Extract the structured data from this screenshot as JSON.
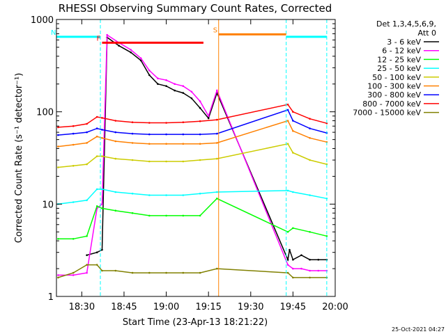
{
  "chart_data": {
    "type": "line",
    "title": "RHESSI Observing Summary Count Rates, Corrected",
    "xlabel": "Start Time (23-Apr-13 18:21:22)",
    "ylabel": "Corrected Count Rate (s⁻¹ detector⁻¹)",
    "footer": "25-Oct-2021 04:27",
    "xlim": [
      18.35,
      20.0
    ],
    "ylim": [
      1,
      1000
    ],
    "yscale": "log",
    "x_ticks": [
      18.5,
      18.75,
      19.0,
      19.25,
      19.5,
      19.75,
      20.0
    ],
    "x_tick_labels": [
      "18:30",
      "18:45",
      "19:00",
      "19:15",
      "19:30",
      "19:45",
      "20:00"
    ],
    "y_ticks": [
      1,
      10,
      100,
      1000
    ],
    "y_tick_labels": [
      "1",
      "10",
      "100",
      "1000"
    ],
    "legend_placement": "right",
    "legend_header": [
      "Det 1,3,4,5,6,9,",
      "Att 0"
    ],
    "series": [
      {
        "name": "3 - 6 keV",
        "color": "#000000",
        "x": [
          18.53,
          18.59,
          18.62,
          18.65,
          18.72,
          18.79,
          18.85,
          18.9,
          18.95,
          19.0,
          19.05,
          19.1,
          19.15,
          19.2,
          19.25,
          19.3,
          19.72,
          19.73,
          19.75,
          19.8,
          19.85,
          19.9,
          19.95
        ],
        "y": [
          2.8,
          3.0,
          3.2,
          640,
          520,
          440,
          360,
          250,
          200,
          190,
          170,
          160,
          140,
          110,
          85,
          160,
          2.5,
          3.2,
          2.5,
          2.8,
          2.5,
          2.5,
          2.5
        ]
      },
      {
        "name": "6 - 12 keV",
        "color": "#ff00ff",
        "x": [
          18.36,
          18.45,
          18.53,
          18.59,
          18.62,
          18.65,
          18.72,
          18.79,
          18.85,
          18.9,
          18.95,
          19.0,
          19.05,
          19.1,
          19.15,
          19.2,
          19.25,
          19.3,
          19.72,
          19.75,
          19.8,
          19.85,
          19.9,
          19.95
        ],
        "y": [
          1.7,
          1.7,
          1.8,
          9.0,
          10.0,
          680,
          560,
          470,
          380,
          280,
          230,
          220,
          200,
          190,
          165,
          130,
          90,
          170,
          2.2,
          2.0,
          2.0,
          1.9,
          1.9,
          1.9
        ]
      },
      {
        "name": "12 - 25 keV",
        "color": "#00ff00",
        "x": [
          18.36,
          18.45,
          18.53,
          18.59,
          18.62,
          18.7,
          18.8,
          18.9,
          19.0,
          19.1,
          19.2,
          19.3,
          19.72,
          19.75,
          19.85,
          19.95
        ],
        "y": [
          4.2,
          4.2,
          4.5,
          9.5,
          9.0,
          8.5,
          8.0,
          7.5,
          7.5,
          7.5,
          7.5,
          11.5,
          5.0,
          5.5,
          5.0,
          4.5
        ]
      },
      {
        "name": "25 - 50 keV",
        "color": "#00ffff",
        "x": [
          18.36,
          18.45,
          18.53,
          18.59,
          18.62,
          18.7,
          18.8,
          18.9,
          19.0,
          19.1,
          19.2,
          19.3,
          19.72,
          19.75,
          19.85,
          19.95
        ],
        "y": [
          10.0,
          10.5,
          11.0,
          14.5,
          14.5,
          13.5,
          13.0,
          12.5,
          12.5,
          12.5,
          13.0,
          13.5,
          14.0,
          13.5,
          12.5,
          11.5
        ]
      },
      {
        "name": "50 - 100 keV",
        "color": "#cccc00",
        "x": [
          18.36,
          18.45,
          18.53,
          18.59,
          18.62,
          18.7,
          18.8,
          18.9,
          19.0,
          19.1,
          19.2,
          19.3,
          19.72,
          19.75,
          19.85,
          19.95
        ],
        "y": [
          25,
          26,
          27,
          33,
          33,
          31,
          30,
          29,
          29,
          29,
          30,
          31,
          45,
          36,
          30,
          27
        ]
      },
      {
        "name": "100 - 300 keV",
        "color": "#ff8000",
        "x": [
          18.36,
          18.45,
          18.53,
          18.59,
          18.62,
          18.7,
          18.8,
          18.9,
          19.0,
          19.1,
          19.2,
          19.3,
          19.72,
          19.75,
          19.85,
          19.95
        ],
        "y": [
          42,
          44,
          46,
          54,
          52,
          48,
          46,
          45,
          45,
          45,
          45,
          46,
          80,
          62,
          52,
          47
        ]
      },
      {
        "name": "300 - 800 keV",
        "color": "#0000ff",
        "x": [
          18.36,
          18.45,
          18.53,
          18.59,
          18.62,
          18.7,
          18.8,
          18.9,
          19.0,
          19.1,
          19.2,
          19.3,
          19.72,
          19.75,
          19.85,
          19.95
        ],
        "y": [
          56,
          58,
          60,
          66,
          64,
          60,
          58,
          57,
          57,
          57,
          57,
          58,
          105,
          80,
          66,
          59
        ]
      },
      {
        "name": "800 - 7000 keV",
        "color": "#ff0000",
        "x": [
          18.36,
          18.45,
          18.53,
          18.59,
          18.62,
          18.7,
          18.8,
          18.9,
          19.0,
          19.1,
          19.2,
          19.3,
          19.72,
          19.75,
          19.85,
          19.95
        ],
        "y": [
          68,
          70,
          74,
          88,
          86,
          80,
          77,
          76,
          76,
          77,
          79,
          82,
          120,
          100,
          84,
          75
        ]
      },
      {
        "name": "7000 - 15000 keV",
        "color": "#808000",
        "x": [
          18.36,
          18.45,
          18.53,
          18.59,
          18.62,
          18.7,
          18.8,
          18.9,
          19.0,
          19.1,
          19.2,
          19.3,
          19.72,
          19.75,
          19.85,
          19.95
        ],
        "y": [
          1.6,
          1.8,
          2.2,
          2.2,
          1.9,
          1.9,
          1.8,
          1.8,
          1.8,
          1.8,
          1.8,
          2.0,
          1.8,
          1.6,
          1.6,
          1.6
        ]
      }
    ],
    "annotations": [
      {
        "label": "N",
        "type": "night",
        "color": "#00ffff",
        "x_start": 18.35,
        "x_end": 18.61,
        "y": 650
      },
      {
        "label": "",
        "type": "night",
        "color": "#00ffff",
        "x_start": 19.71,
        "x_end": 19.95,
        "y": 650
      },
      {
        "label": "F",
        "type": "flare",
        "color": "#ff0000",
        "x_start": 18.62,
        "x_end": 19.22,
        "y": 560
      },
      {
        "label": "S",
        "type": "saa",
        "color": "#ff8000",
        "x_start": 19.31,
        "x_end": 19.71,
        "y": 690
      }
    ],
    "vertical_markers": [
      {
        "x": 18.61,
        "color": "#00ffff",
        "style": "dashed"
      },
      {
        "x": 19.31,
        "color": "#ff8000",
        "style": "solid"
      },
      {
        "x": 19.71,
        "color": "#00ffff",
        "style": "dashed"
      },
      {
        "x": 19.95,
        "color": "#00ffff",
        "style": "dashed"
      }
    ]
  }
}
